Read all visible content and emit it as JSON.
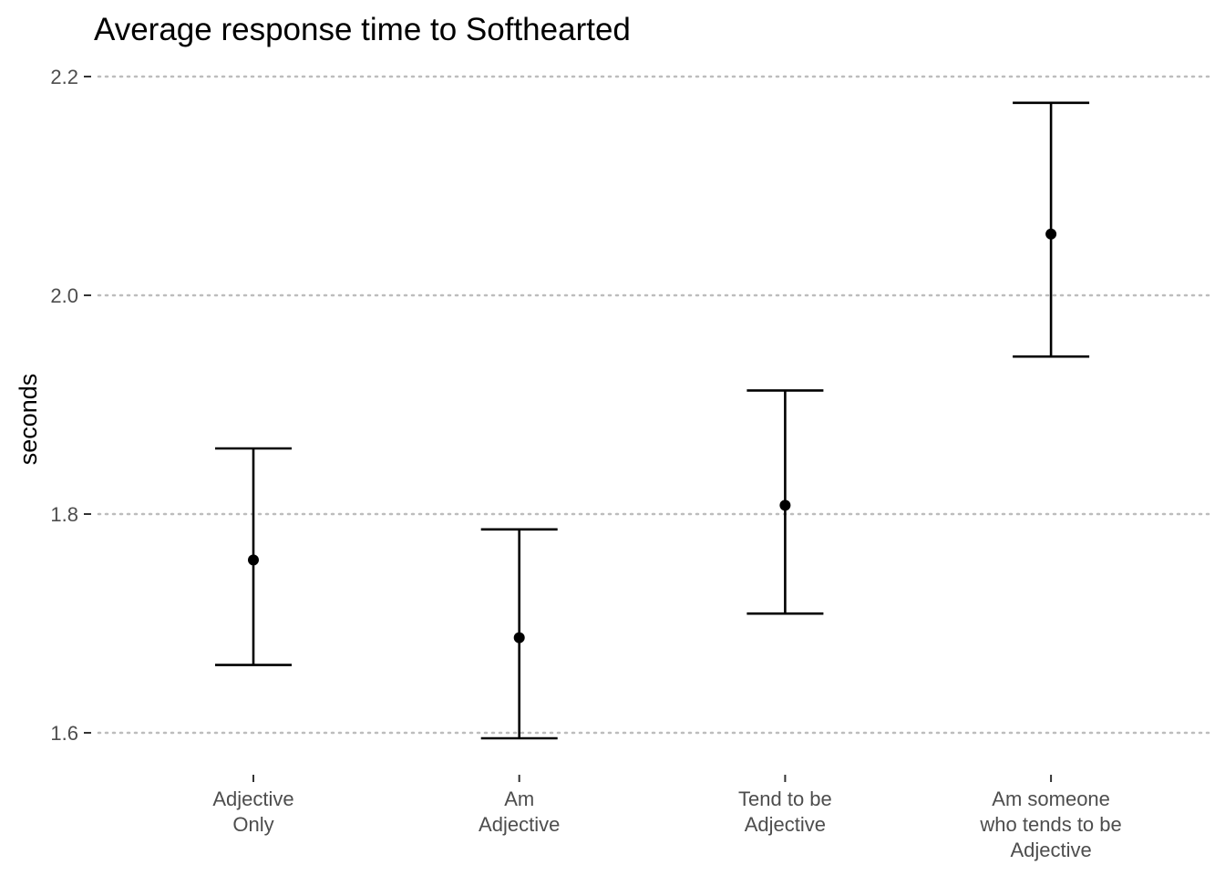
{
  "chart_data": {
    "type": "scatter",
    "title": "Average response time to Softhearted",
    "xlabel": "",
    "ylabel": "seconds",
    "ylim": [
      1.57,
      2.22
    ],
    "yticks": [
      1.6,
      1.8,
      2.0,
      2.2
    ],
    "ytick_labels": [
      "1.6",
      "1.8",
      "2.0",
      "2.2"
    ],
    "grid": "horizontal-dotted",
    "categories": [
      [
        "Adjective",
        "Only"
      ],
      [
        "Am",
        "Adjective"
      ],
      [
        "Tend to be",
        "Adjective"
      ],
      [
        "Am someone",
        "who tends to be",
        "Adjective"
      ]
    ],
    "values": [
      1.758,
      1.687,
      1.808,
      2.056
    ],
    "error_low": [
      1.662,
      1.595,
      1.709,
      1.944
    ],
    "error_high": [
      1.86,
      1.786,
      1.913,
      2.176
    ]
  }
}
